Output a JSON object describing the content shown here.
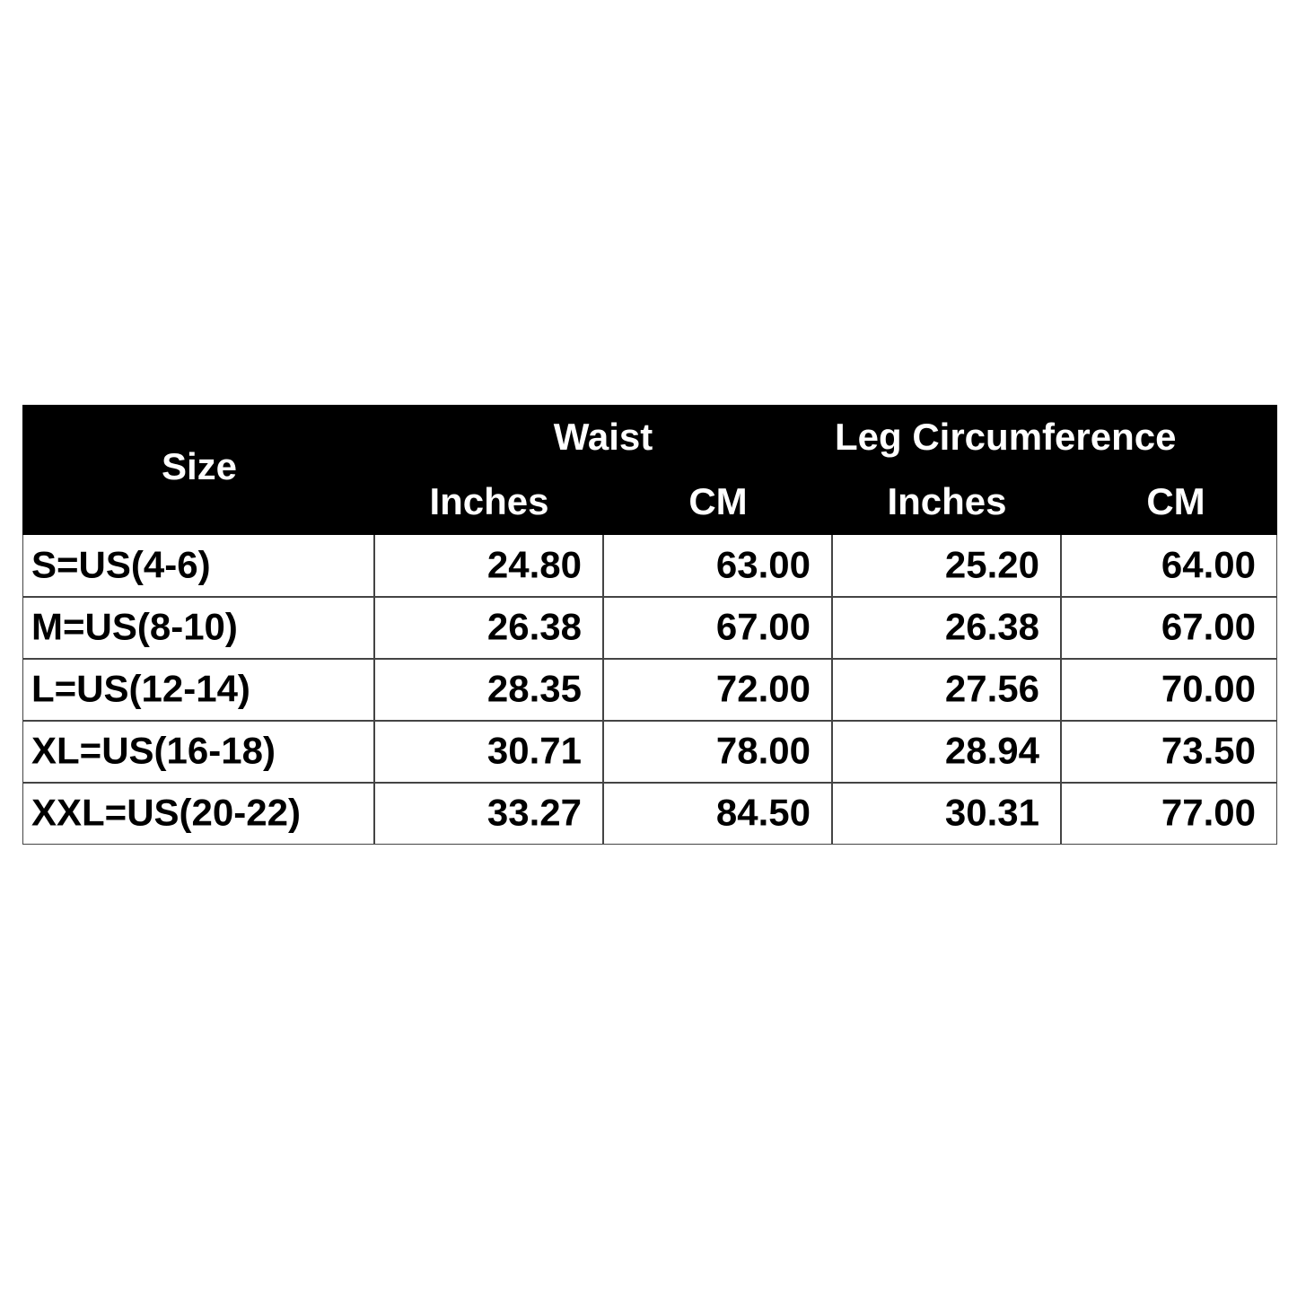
{
  "table": {
    "header": {
      "size": "Size",
      "groups": [
        "Waist",
        "Leg Circumference"
      ],
      "units": [
        "Inches",
        "CM",
        "Inches",
        "CM"
      ]
    },
    "rows": [
      [
        "S=US(4-6)",
        "24.80",
        "63.00",
        "25.20",
        "64.00"
      ],
      [
        "M=US(8-10)",
        "26.38",
        "67.00",
        "26.38",
        "67.00"
      ],
      [
        "L=US(12-14)",
        "28.35",
        "72.00",
        "27.56",
        "70.00"
      ],
      [
        "XL=US(16-18)",
        "30.71",
        "78.00",
        "28.94",
        "73.50"
      ],
      [
        "XXL=US(20-22)",
        "33.27",
        "84.50",
        "30.31",
        "77.00"
      ]
    ]
  }
}
